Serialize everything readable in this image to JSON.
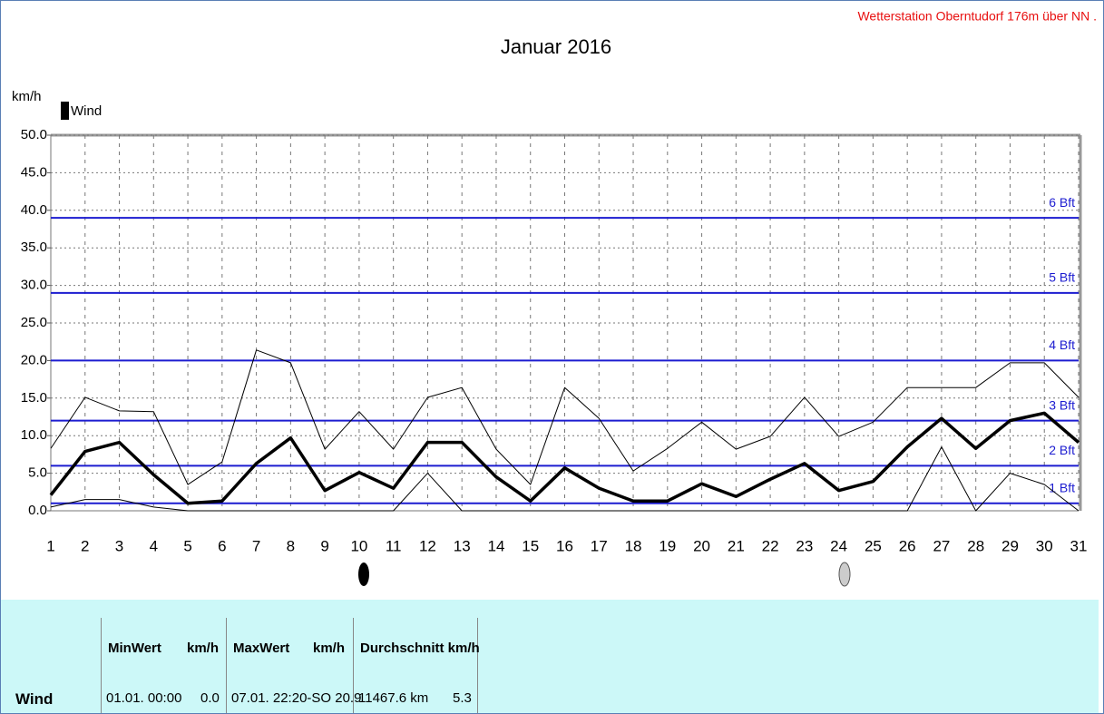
{
  "chart_data": {
    "type": "line",
    "title": "Januar 2016",
    "station": "Wetterstation Oberntudorf 176m über NN .",
    "ylabel": "km/h",
    "categories": [
      "1",
      "2",
      "3",
      "4",
      "5",
      "6",
      "7",
      "8",
      "9",
      "10",
      "11",
      "12",
      "13",
      "14",
      "15",
      "16",
      "17",
      "18",
      "19",
      "20",
      "21",
      "22",
      "23",
      "24",
      "25",
      "26",
      "27",
      "28",
      "29",
      "30",
      "31"
    ],
    "series": [
      {
        "name": "Wind",
        "color": "#000000",
        "width": 3.5,
        "values": [
          2.1,
          7.9,
          9.1,
          4.8,
          1.0,
          1.3,
          6.3,
          9.7,
          2.7,
          5.1,
          3.0,
          9.1,
          9.1,
          4.5,
          1.3,
          5.7,
          3.0,
          1.3,
          1.3,
          3.6,
          1.9,
          4.2,
          6.3,
          2.7,
          3.9,
          8.5,
          12.3,
          8.3,
          12.0,
          13.0,
          9.1
        ]
      },
      {
        "color": "#000000",
        "width": 1,
        "values": [
          8.3,
          15.1,
          13.3,
          13.2,
          3.5,
          6.5,
          21.4,
          19.7,
          8.2,
          13.2,
          8.2,
          15.1,
          16.4,
          8.2,
          3.5,
          16.4,
          12.3,
          5.3,
          8.3,
          11.8,
          8.2,
          9.9,
          15.1,
          9.9,
          11.8,
          16.4,
          16.4,
          16.4,
          19.7,
          19.7,
          15.1
        ]
      },
      {
        "color": "#000000",
        "width": 1,
        "values": [
          0.5,
          1.5,
          1.5,
          0.5,
          0,
          0,
          0,
          0,
          0,
          0,
          0,
          5.0,
          0,
          0,
          0,
          0,
          0,
          0,
          0,
          0,
          0,
          0,
          0,
          0,
          0,
          0,
          8.5,
          0,
          5.0,
          3.5,
          0
        ]
      }
    ],
    "ylim": [
      0,
      50
    ],
    "yticks": [
      {
        "value": 0,
        "label": "0.0"
      },
      {
        "value": 5,
        "label": "5.0"
      },
      {
        "value": 10,
        "label": "10.0"
      },
      {
        "value": 15,
        "label": "15.0"
      },
      {
        "value": 20,
        "label": "20.0"
      },
      {
        "value": 25,
        "label": "25.0"
      },
      {
        "value": 30,
        "label": "30.0"
      },
      {
        "value": 35,
        "label": "35.0"
      },
      {
        "value": 40,
        "label": "40.0"
      },
      {
        "value": 45,
        "label": "45.0"
      },
      {
        "value": 50,
        "label": "50.0"
      }
    ],
    "grid": true,
    "reference_color": "#1c1cd0",
    "reference_lines": [
      {
        "value": 1,
        "label": "1 Bft"
      },
      {
        "value": 6,
        "label": "2 Bft"
      },
      {
        "value": 12,
        "label": "3 Bft"
      },
      {
        "value": 20,
        "label": "4 Bft"
      },
      {
        "value": 29,
        "label": "5 Bft"
      },
      {
        "value": 39,
        "label": "6 Bft"
      }
    ]
  },
  "table": {
    "headers": [
      "MinWert",
      "km/h",
      "MaxWert",
      "km/h",
      "Durchschnitt km/h"
    ],
    "row": [
      "Wind",
      "01.01. 00:00",
      "0.0",
      "07.01. 22:20-SO 20.9",
      "11467.6 km",
      "5.3"
    ]
  }
}
